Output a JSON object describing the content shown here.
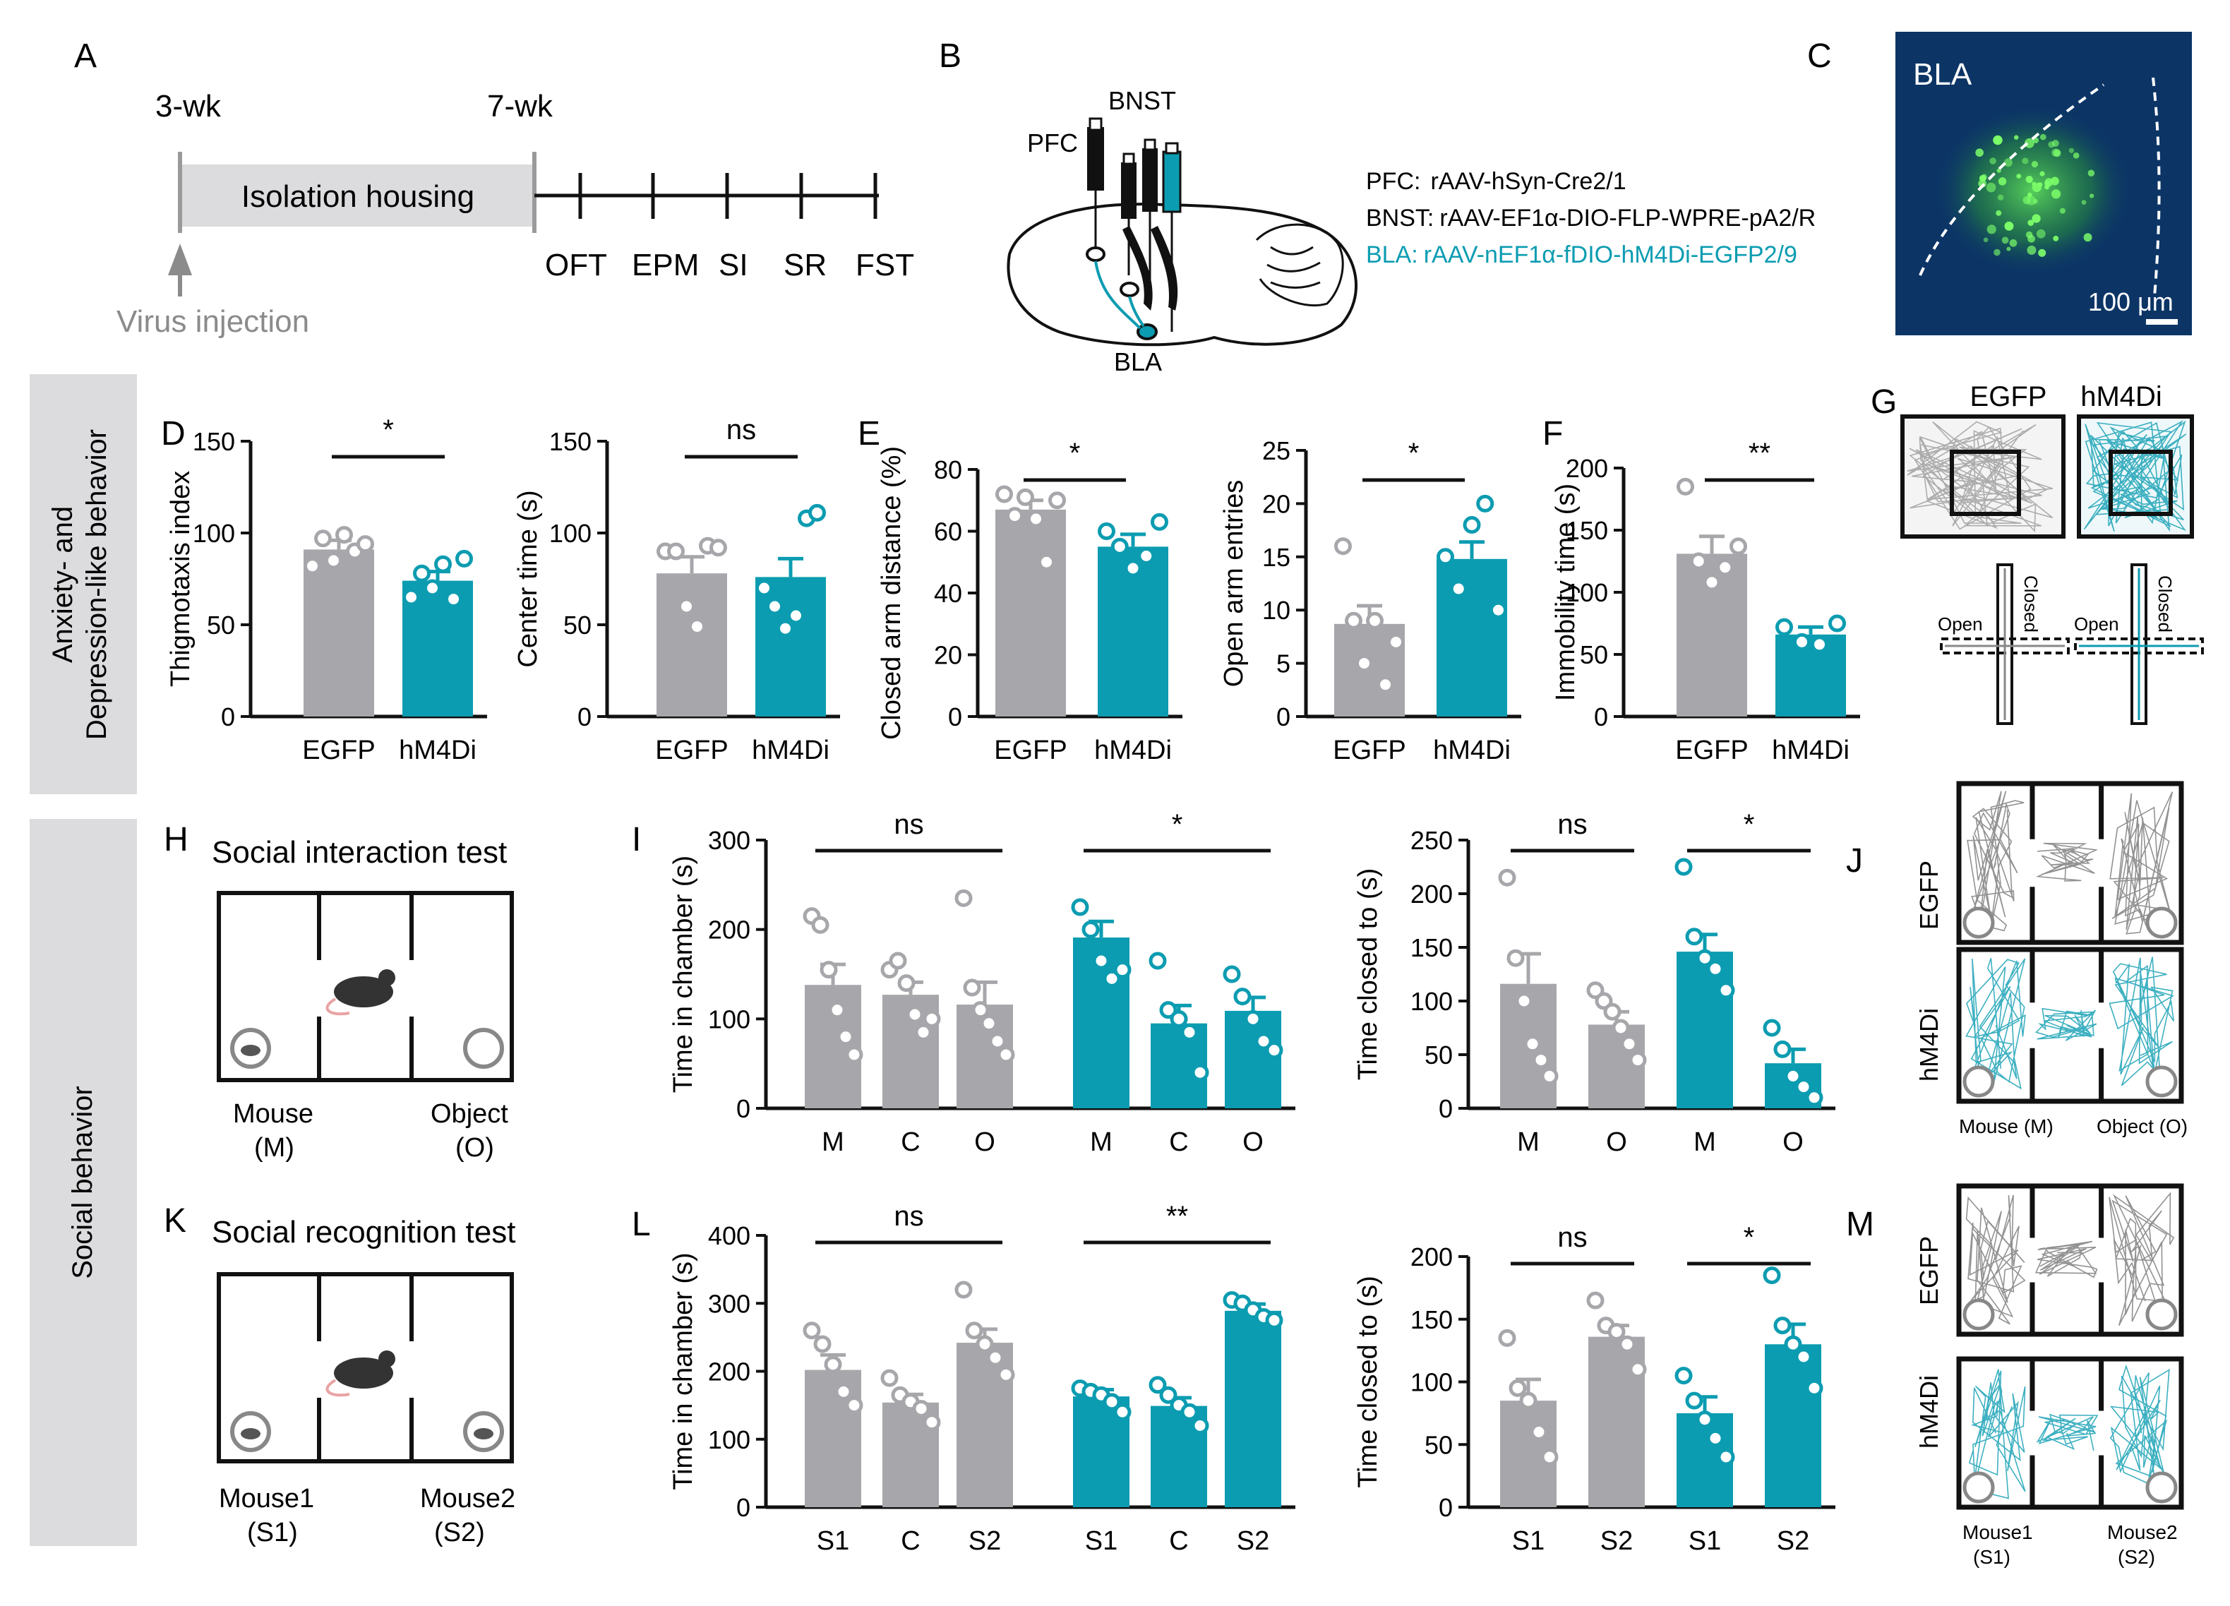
{
  "colors": {
    "egfp": "#a7a7ab",
    "hm4di": "#0c9cb1",
    "hm4di_text": "#0c9cb1",
    "sidebar": "#dcdcde",
    "gray_text": "#8b8b8b"
  },
  "panel_labels": {
    "A": "A",
    "B": "B",
    "C": "C",
    "D": "D",
    "E": "E",
    "F": "F",
    "G": "G",
    "H": "H",
    "I": "I",
    "J": "J",
    "K": "K",
    "L": "L",
    "M": "M"
  },
  "sidebar": {
    "top": "Anxiety- and Depression-like behavior",
    "top_line1": "Anxiety- and",
    "top_line2": "Depression-like behavior",
    "bottom": "Social behavior"
  },
  "timeline": {
    "start": "3-wk",
    "end": "7-wk",
    "box": "Isolation housing",
    "tests": [
      "OFT",
      "EPM",
      "SI",
      "SR",
      "FST"
    ],
    "injection": "Virus injection"
  },
  "brain": {
    "pfc": "PFC",
    "bnst": "BNST",
    "bla": "BLA",
    "vectors": [
      {
        "region": "PFC:",
        "virus": "rAAV-hSyn-Cre2/1"
      },
      {
        "region": "BNST:",
        "virus": "rAAV-EF1α-DIO-FLP-WPRE-pA2/R"
      },
      {
        "region": "BLA:",
        "virus": "rAAV-nEF1α-fDIO-hM4Di-EGFP2/9"
      }
    ]
  },
  "micrograph": {
    "label": "BLA",
    "scale": "100 μm"
  },
  "groups": [
    "EGFP",
    "hM4Di"
  ],
  "chart_data": [
    {
      "id": "thigmotaxis",
      "type": "bar",
      "ylabel": "Thigmotaxis index",
      "categories": [
        "EGFP",
        "hM4Di"
      ],
      "values": [
        91,
        74
      ],
      "sem": [
        5,
        5
      ],
      "ylim": [
        0,
        150
      ],
      "yticks": [
        "0",
        "50",
        "100",
        "150"
      ],
      "significance": "*",
      "points": [
        [
          82,
          97,
          85,
          99,
          90,
          94
        ],
        [
          65,
          78,
          70,
          83,
          64,
          86
        ]
      ]
    },
    {
      "id": "center_time",
      "type": "bar",
      "ylabel": "Center time (s)",
      "categories": [
        "EGFP",
        "hM4Di"
      ],
      "values": [
        78,
        76
      ],
      "sem": [
        9,
        10
      ],
      "ylim": [
        0,
        150
      ],
      "yticks": [
        "0",
        "50",
        "100",
        "150"
      ],
      "significance": "ns",
      "points": [
        [
          90,
          90,
          60,
          49,
          93,
          92
        ],
        [
          70,
          60,
          48,
          55,
          108,
          111
        ]
      ]
    },
    {
      "id": "closed_arm",
      "type": "bar",
      "ylabel": "Closed arm distance (%)",
      "categories": [
        "EGFP",
        "hM4Di"
      ],
      "values": [
        67,
        55
      ],
      "sem": [
        3,
        4
      ],
      "ylim": [
        0,
        80
      ],
      "yticks": [
        "0",
        "20",
        "40",
        "60",
        "80"
      ],
      "significance": "*",
      "points": [
        [
          72,
          65,
          71,
          64,
          50,
          70
        ],
        [
          60,
          55,
          48,
          52,
          63
        ]
      ]
    },
    {
      "id": "open_arm",
      "type": "bar",
      "ylabel": "Open arm entries",
      "categories": [
        "EGFP",
        "hM4Di"
      ],
      "values": [
        8.7,
        14.8
      ],
      "sem": [
        1.7,
        1.6
      ],
      "ylim": [
        0,
        25
      ],
      "yticks": [
        "0",
        "5",
        "10",
        "15",
        "20",
        "25"
      ],
      "significance": "*",
      "points": [
        [
          16,
          9,
          5,
          9,
          3,
          7
        ],
        [
          15,
          12,
          18,
          20,
          10
        ]
      ]
    },
    {
      "id": "immobility",
      "type": "bar",
      "ylabel": "Immobility time (s)",
      "categories": [
        "EGFP",
        "hM4Di"
      ],
      "values": [
        131,
        66
      ],
      "sem": [
        14,
        6
      ],
      "ylim": [
        0,
        200
      ],
      "yticks": [
        "0",
        "50",
        "100",
        "150",
        "200"
      ],
      "significance": "**",
      "points": [
        [
          185,
          125,
          108,
          120,
          137
        ],
        [
          72,
          60,
          58,
          75
        ]
      ]
    },
    {
      "id": "si_chamber",
      "type": "bar",
      "ylabel": "Time in chamber (s)",
      "categories": [
        "M",
        "C",
        "O",
        "M",
        "C",
        "O"
      ],
      "groups": [
        "EGFP",
        "EGFP",
        "EGFP",
        "hM4Di",
        "hM4Di",
        "hM4Di"
      ],
      "values": [
        138,
        127,
        116,
        191,
        95,
        109
      ],
      "sem": [
        23,
        14,
        25,
        18,
        20,
        15
      ],
      "ylim": [
        0,
        300
      ],
      "yticks": [
        "0",
        "100",
        "200",
        "300"
      ],
      "significance": [
        "ns",
        "*"
      ],
      "points": [
        [
          215,
          205,
          155,
          110,
          80,
          60
        ],
        [
          155,
          165,
          140,
          105,
          85,
          100
        ],
        [
          235,
          135,
          110,
          95,
          75,
          60
        ],
        [
          225,
          200,
          165,
          145,
          155
        ],
        [
          165,
          110,
          100,
          85,
          40
        ],
        [
          150,
          125,
          100,
          75,
          65
        ]
      ]
    },
    {
      "id": "si_closed",
      "type": "bar",
      "ylabel": "Time closed to (s)",
      "categories": [
        "M",
        "O",
        "M",
        "O"
      ],
      "groups": [
        "EGFP",
        "EGFP",
        "hM4Di",
        "hM4Di"
      ],
      "values": [
        116,
        78,
        146,
        42
      ],
      "sem": [
        28,
        12,
        16,
        13
      ],
      "ylim": [
        0,
        250
      ],
      "yticks": [
        "0",
        "50",
        "100",
        "150",
        "200",
        "250"
      ],
      "significance": [
        "ns",
        "*"
      ],
      "points": [
        [
          215,
          140,
          100,
          60,
          45,
          30
        ],
        [
          110,
          100,
          90,
          75,
          60,
          45
        ],
        [
          225,
          160,
          140,
          130,
          110
        ],
        [
          75,
          55,
          30,
          20,
          10
        ]
      ]
    },
    {
      "id": "sr_chamber",
      "type": "bar",
      "ylabel": "Time in chamber (s)",
      "categories": [
        "S1",
        "C",
        "S2",
        "S1",
        "C",
        "S2"
      ],
      "groups": [
        "EGFP",
        "EGFP",
        "EGFP",
        "hM4Di",
        "hM4Di",
        "hM4Di"
      ],
      "values": [
        202,
        154,
        242,
        163,
        149,
        289
      ],
      "sem": [
        22,
        12,
        20,
        10,
        12,
        10
      ],
      "ylim": [
        0,
        400
      ],
      "yticks": [
        "0",
        "100",
        "200",
        "300",
        "400"
      ],
      "significance": [
        "ns",
        "**"
      ],
      "points": [
        [
          260,
          240,
          210,
          170,
          150
        ],
        [
          190,
          165,
          155,
          145,
          125
        ],
        [
          320,
          260,
          240,
          220,
          195
        ],
        [
          175,
          170,
          165,
          155,
          140
        ],
        [
          180,
          165,
          150,
          140,
          120
        ],
        [
          305,
          300,
          290,
          280,
          275
        ]
      ]
    },
    {
      "id": "sr_closed",
      "type": "bar",
      "ylabel": "Time closed to (s)",
      "categories": [
        "S1",
        "S2",
        "S1",
        "S2"
      ],
      "groups": [
        "EGFP",
        "EGFP",
        "hM4Di",
        "hM4Di"
      ],
      "values": [
        85,
        136,
        75,
        130
      ],
      "sem": [
        17,
        9,
        13,
        16
      ],
      "ylim": [
        0,
        200
      ],
      "yticks": [
        "0",
        "50",
        "100",
        "150",
        "200"
      ],
      "significance": [
        "ns",
        "*"
      ],
      "points": [
        [
          135,
          95,
          85,
          60,
          40
        ],
        [
          165,
          145,
          140,
          130,
          110
        ],
        [
          105,
          85,
          70,
          55,
          40
        ],
        [
          185,
          145,
          130,
          120,
          95
        ]
      ]
    }
  ],
  "g_panel": {
    "egfp": "EGFP",
    "hm4di": "hM4Di",
    "open": "Open",
    "closed": "Closed"
  },
  "si_test": {
    "title": "Social interaction test",
    "left": "Mouse",
    "left_sub": "(M)",
    "right": "Object",
    "right_sub": "(O)"
  },
  "sr_test": {
    "title": "Social recognition test",
    "left": "Mouse1",
    "left_sub": "(S1)",
    "right": "Mouse2",
    "right_sub": "(S2)"
  },
  "j_panel": {
    "egfp": "EGFP",
    "hm4di": "hM4Di",
    "left": "Mouse (M)",
    "right": "Object (O)"
  },
  "m_panel": {
    "egfp": "EGFP",
    "hm4di": "hM4Di",
    "left": "Mouse1",
    "left_sub": "(S1)",
    "right": "Mouse2",
    "right_sub": "(S2)"
  }
}
